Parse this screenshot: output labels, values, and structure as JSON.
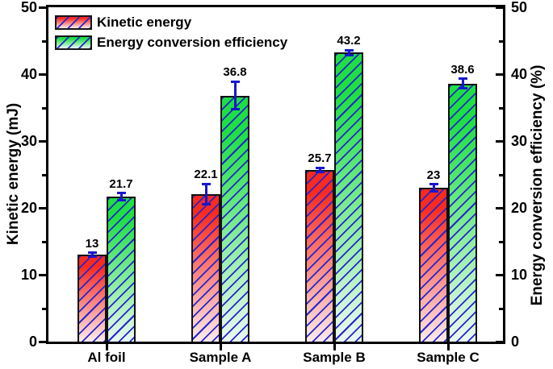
{
  "chart_data": {
    "type": "bar",
    "title": "",
    "categories": [
      "Al foil",
      "Sample A",
      "Sample B",
      "Sample C"
    ],
    "series": [
      {
        "name": "Kinetic energy",
        "axis": "left",
        "values": [
          13,
          22.1,
          25.7,
          23
        ],
        "errors": [
          0.3,
          1.5,
          0.3,
          0.5
        ],
        "value_labels": [
          "13",
          "22.1",
          "25.7",
          "23"
        ]
      },
      {
        "name": "Energy conversion efficiency",
        "axis": "right",
        "values": [
          21.7,
          36.8,
          43.2,
          38.6
        ],
        "errors": [
          0.5,
          2.1,
          0.4,
          0.7
        ],
        "value_labels": [
          "21.7",
          "36.8",
          "43.2",
          "38.6"
        ]
      }
    ],
    "axes": {
      "left": {
        "label": "Kinetic energy (mJ)",
        "min": 0,
        "max": 50,
        "ticks_major": [
          0,
          10,
          20,
          30,
          40,
          50
        ],
        "ticks_minor": [
          5,
          15,
          25,
          35,
          45
        ],
        "tick_direction": "out"
      },
      "right": {
        "label": "Energy conversion efficiency (%)",
        "min": 0,
        "max": 50,
        "ticks_major": [
          0,
          10,
          20,
          30,
          40,
          50
        ],
        "ticks_minor": [
          5,
          15,
          25,
          35,
          45
        ],
        "tick_direction": "in"
      }
    },
    "legend": {
      "position": "top-left-inside"
    },
    "grid": false,
    "hatch_style": "forward-diagonal"
  },
  "colors": {
    "axis": "#000000",
    "text": "#000000",
    "bar_border": "#111111",
    "hatch_line": "#2424d0",
    "error_bar": "#1717cf",
    "kinetic_top": "#f92a1e",
    "kinetic_bottom": "#fcebea",
    "efficiency_top": "#1fdf42",
    "efficiency_bottom": "#ecf9f0",
    "background": "#ffffff"
  }
}
